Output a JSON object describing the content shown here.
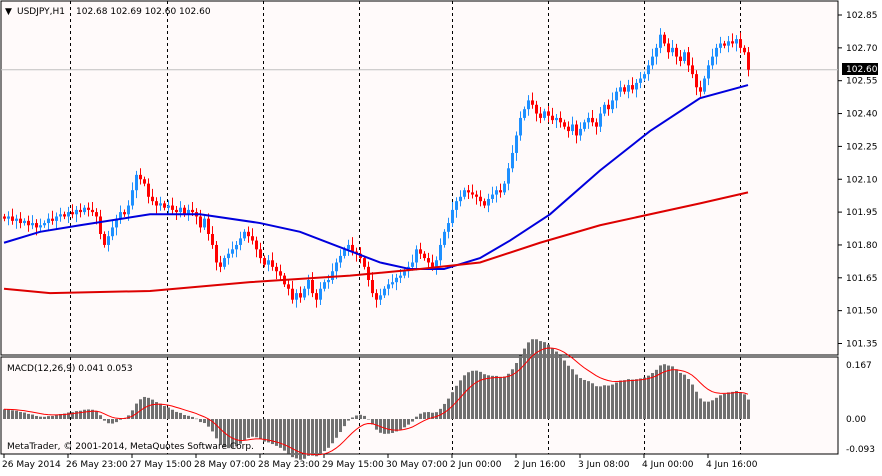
{
  "header": {
    "symbol": "USDJPY,H1",
    "ohlc": "102.68 102.69 102.60 102.60"
  },
  "macd_label": "MACD(12,26,9) 0.041 0.053",
  "copyright": "MetaTrader, © 2001-2014, MetaQuotes Software Corp.",
  "current_price_label": "102.60",
  "colors": {
    "background": "#FFFAFA",
    "bull": "#1E90FF",
    "bear": "#FF0000",
    "ma_fast": "#0000DD",
    "ma_slow": "#DD0000",
    "macd_hist": "#707070",
    "macd_signal": "#FF0000",
    "grid": "#000000"
  },
  "chart_data": {
    "type": "candlestick",
    "symbol": "USDJPY",
    "timeframe": "H1",
    "price_axis": {
      "range": [
        101.33,
        102.9
      ],
      "ticks": [
        "102.85",
        "102.70",
        "102.55",
        "102.40",
        "102.25",
        "102.10",
        "101.95",
        "101.80",
        "101.65",
        "101.50",
        "101.35"
      ]
    },
    "time_labels": [
      "26 May 2014",
      "26 May 23:00",
      "27 May 15:00",
      "28 May 07:00",
      "28 May 23:00",
      "29 May 15:00",
      "30 May 07:00",
      "2 Jun 00:00",
      "2 Jun 16:00",
      "3 Jun 08:00",
      "4 Jun 00:00",
      "4 Jun 16:00"
    ],
    "time_label_bars": [
      0,
      16,
      32,
      48,
      64,
      80,
      96,
      112,
      128,
      144,
      160,
      176
    ],
    "day_separator_bars": [
      16.5,
      40.75,
      64.75,
      88.75,
      112,
      136,
      160,
      184
    ],
    "close": [
      101.92,
      101.93,
      101.91,
      101.92,
      101.9,
      101.91,
      101.89,
      101.9,
      101.88,
      101.89,
      101.9,
      101.92,
      101.91,
      101.93,
      101.94,
      101.93,
      101.95,
      101.94,
      101.96,
      101.95,
      101.97,
      101.96,
      101.95,
      101.93,
      101.85,
      101.8,
      101.84,
      101.88,
      101.92,
      101.95,
      101.94,
      101.98,
      102.05,
      102.12,
      102.1,
      102.08,
      102.02,
      102.0,
      101.98,
      101.99,
      101.97,
      101.98,
      101.96,
      101.95,
      101.97,
      101.94,
      101.96,
      101.95,
      101.93,
      101.88,
      101.92,
      101.85,
      101.8,
      101.72,
      101.7,
      101.74,
      101.76,
      101.78,
      101.8,
      101.83,
      101.86,
      101.84,
      101.82,
      101.78,
      101.74,
      101.71,
      101.73,
      101.7,
      101.68,
      101.66,
      101.62,
      101.6,
      101.55,
      101.58,
      101.56,
      101.6,
      101.64,
      101.58,
      101.55,
      101.6,
      101.63,
      101.64,
      101.68,
      101.72,
      101.75,
      101.78,
      101.8,
      101.77,
      101.76,
      101.74,
      101.7,
      101.64,
      101.58,
      101.55,
      101.57,
      101.6,
      101.62,
      101.63,
      101.65,
      101.66,
      101.68,
      101.7,
      101.72,
      101.78,
      101.76,
      101.74,
      101.72,
      101.7,
      101.73,
      101.8,
      101.86,
      101.9,
      101.96,
      102.0,
      102.02,
      102.05,
      102.04,
      102.03,
      102.02,
      102.0,
      101.98,
      102.01,
      102.03,
      102.05,
      102.04,
      102.08,
      102.15,
      102.22,
      102.3,
      102.38,
      102.42,
      102.46,
      102.44,
      102.4,
      102.38,
      102.41,
      102.39,
      102.37,
      102.38,
      102.36,
      102.34,
      102.32,
      102.35,
      102.3,
      102.33,
      102.36,
      102.38,
      102.36,
      102.34,
      102.4,
      102.44,
      102.42,
      102.46,
      102.5,
      102.52,
      102.5,
      102.53,
      102.51,
      102.54,
      102.56,
      102.58,
      102.62,
      102.66,
      102.7,
      102.76,
      102.72,
      102.68,
      102.7,
      102.66,
      102.64,
      102.68,
      102.62,
      102.58,
      102.52,
      102.5,
      102.56,
      102.62,
      102.66,
      102.7,
      102.72,
      102.71,
      102.73,
      102.72,
      102.74,
      102.7,
      102.68,
      102.6
    ],
    "ma_fast": [
      [
        0,
        101.81
      ],
      [
        9,
        101.86
      ],
      [
        19,
        101.89
      ],
      [
        36.5,
        101.94
      ],
      [
        49,
        101.94
      ],
      [
        64,
        101.9
      ],
      [
        74,
        101.86
      ],
      [
        84,
        101.79
      ],
      [
        94,
        101.72
      ],
      [
        101.5,
        101.69
      ],
      [
        110,
        101.69
      ],
      [
        119,
        101.74
      ],
      [
        126.5,
        101.82
      ],
      [
        136.5,
        101.94
      ],
      [
        149,
        102.14
      ],
      [
        161.5,
        102.32
      ],
      [
        174,
        102.47
      ],
      [
        186,
        102.53
      ]
    ],
    "ma_slow": [
      [
        0,
        101.6
      ],
      [
        11.5,
        101.58
      ],
      [
        36.5,
        101.59
      ],
      [
        61.5,
        101.63
      ],
      [
        86.5,
        101.66
      ],
      [
        104,
        101.69
      ],
      [
        119,
        101.72
      ],
      [
        134,
        101.81
      ],
      [
        149,
        101.89
      ],
      [
        174,
        101.99
      ],
      [
        186,
        102.04
      ]
    ],
    "macd": {
      "params": [
        12,
        26,
        9
      ],
      "axis_ticks": [
        "0.167",
        "0.00",
        "-0.093"
      ],
      "range": [
        -0.093,
        0.167
      ],
      "last_main": 0.041,
      "last_signal": 0.053
    }
  }
}
